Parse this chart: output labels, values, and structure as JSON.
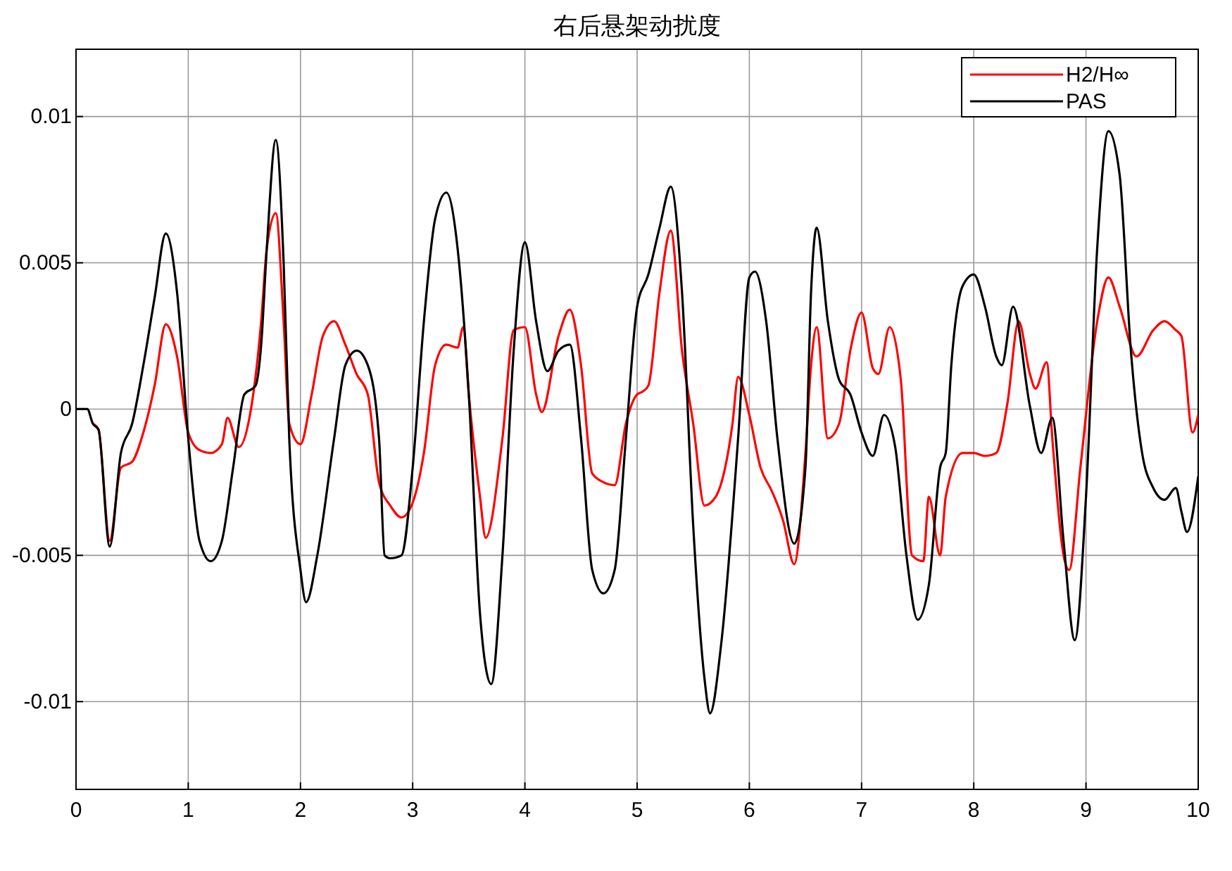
{
  "chart_data": {
    "type": "line",
    "title": "右后悬架动扰度",
    "xlim": [
      0,
      10
    ],
    "ylim": [
      -0.013,
      0.0123
    ],
    "xticks": [
      0,
      1,
      2,
      3,
      4,
      5,
      6,
      7,
      8,
      9,
      10
    ],
    "yticks": [
      -0.01,
      -0.005,
      0,
      0.005,
      0.01
    ],
    "grid": true,
    "legend": "top right",
    "line_style": "solid",
    "marker": "none",
    "series": [
      {
        "name": "H2/H∞",
        "color": "#ff0000",
        "x": [
          0.15,
          0.2,
          0.3,
          0.4,
          0.5,
          0.6,
          0.7,
          0.8,
          0.9,
          1.0,
          1.1,
          1.2,
          1.3,
          1.35,
          1.45,
          1.55,
          1.65,
          1.7,
          1.78,
          1.85,
          1.9,
          2.0,
          2.1,
          2.2,
          2.3,
          2.4,
          2.5,
          2.6,
          2.7,
          2.8,
          2.9,
          3.0,
          3.1,
          3.2,
          3.3,
          3.4,
          3.45,
          3.5,
          3.6,
          3.65,
          3.8,
          3.9,
          4.0,
          4.1,
          4.15,
          4.3,
          4.4,
          4.5,
          4.6,
          4.7,
          4.8,
          4.9,
          5.0,
          5.05,
          5.1,
          5.2,
          5.3,
          5.4,
          5.5,
          5.6,
          5.7,
          5.85,
          5.9,
          6.0,
          6.1,
          6.2,
          6.3,
          6.4,
          6.5,
          6.55,
          6.6,
          6.7,
          6.8,
          6.9,
          7.0,
          7.1,
          7.15,
          7.25,
          7.35,
          7.45,
          7.55,
          7.6,
          7.7,
          7.75,
          7.9,
          8.0,
          8.1,
          8.2,
          8.3,
          8.4,
          8.5,
          8.55,
          8.65,
          8.7,
          8.8,
          8.85,
          8.95,
          9.1,
          9.2,
          9.3,
          9.45,
          9.6,
          9.7,
          9.8,
          9.85,
          9.95,
          10
        ],
        "values": [
          -0.0005,
          -0.0007,
          -0.0045,
          -0.002,
          -0.0018,
          -0.0008,
          0.0008,
          0.0029,
          0.0018,
          -0.0008,
          -0.0014,
          -0.0015,
          -0.0012,
          -0.0003,
          -0.0013,
          -0.0002,
          0.003,
          0.0055,
          0.0067,
          0.003,
          -0.0005,
          -0.0012,
          0.0005,
          0.0025,
          0.003,
          0.0022,
          0.0012,
          0.0005,
          -0.0025,
          -0.0033,
          -0.0037,
          -0.0032,
          -0.0015,
          0.0015,
          0.0022,
          0.0021,
          0.0028,
          0.0005,
          -0.003,
          -0.0044,
          -0.001,
          0.0027,
          0.0028,
          0.0005,
          -0.0001,
          0.0025,
          0.0034,
          0.0015,
          -0.0022,
          -0.0025,
          -0.0026,
          -0.0005,
          0.0005,
          0.0006,
          0.0008,
          0.004,
          0.0061,
          0.002,
          -0.0005,
          -0.0033,
          -0.003,
          -0.0005,
          0.0011,
          -0.0002,
          -0.002,
          -0.0028,
          -0.0038,
          -0.0053,
          -0.0015,
          0.0015,
          0.0028,
          -0.001,
          -0.0005,
          0.002,
          0.0033,
          0.0014,
          0.0012,
          0.0028,
          0.001,
          -0.005,
          -0.0052,
          -0.003,
          -0.005,
          -0.003,
          -0.0015,
          -0.0015,
          -0.0016,
          -0.0015,
          0.0002,
          0.003,
          0.0012,
          0.0007,
          0.0016,
          -0.001,
          -0.005,
          -0.0055,
          -0.002,
          0.003,
          0.0045,
          0.0035,
          0.0018,
          0.0027,
          0.003,
          0.0027,
          0.0025,
          -0.0008,
          -0.0002
        ]
      },
      {
        "name": "PAS",
        "color": "#000000",
        "x": [
          0,
          0.1,
          0.15,
          0.2,
          0.3,
          0.4,
          0.5,
          0.6,
          0.7,
          0.8,
          0.9,
          1.0,
          1.1,
          1.2,
          1.3,
          1.4,
          1.5,
          1.6,
          1.65,
          1.7,
          1.78,
          1.85,
          1.9,
          2.0,
          2.05,
          2.15,
          2.3,
          2.4,
          2.5,
          2.6,
          2.7,
          2.75,
          2.8,
          2.9,
          3.0,
          3.1,
          3.2,
          3.3,
          3.4,
          3.5,
          3.6,
          3.7,
          3.8,
          3.9,
          4.0,
          4.1,
          4.2,
          4.3,
          4.4,
          4.5,
          4.6,
          4.7,
          4.8,
          4.9,
          5.0,
          5.1,
          5.2,
          5.3,
          5.4,
          5.5,
          5.6,
          5.65,
          5.75,
          5.9,
          6.0,
          6.05,
          6.15,
          6.25,
          6.4,
          6.5,
          6.55,
          6.6,
          6.7,
          6.8,
          6.9,
          7.0,
          7.1,
          7.2,
          7.3,
          7.4,
          7.5,
          7.6,
          7.7,
          7.75,
          7.8,
          7.9,
          8.0,
          8.1,
          8.2,
          8.25,
          8.35,
          8.5,
          8.6,
          8.7,
          8.8,
          8.9,
          9.0,
          9.1,
          9.2,
          9.3,
          9.4,
          9.5,
          9.6,
          9.7,
          9.8,
          9.85,
          9.9,
          10
        ],
        "values": [
          0,
          0,
          -0.0005,
          -0.0007,
          -0.0047,
          -0.0015,
          -0.0005,
          0.0015,
          0.0038,
          0.006,
          0.004,
          -0.001,
          -0.0045,
          -0.0052,
          -0.0045,
          -0.002,
          0.0005,
          0.0008,
          0.0022,
          0.0055,
          0.0092,
          0.005,
          -0.001,
          -0.0055,
          -0.0066,
          -0.005,
          -0.001,
          0.0015,
          0.002,
          0.0015,
          -0.001,
          -0.005,
          -0.0051,
          -0.005,
          -0.002,
          0.003,
          0.0065,
          0.0074,
          0.0055,
          0.0005,
          -0.007,
          -0.0094,
          -0.005,
          0.002,
          0.0057,
          0.003,
          0.0013,
          0.002,
          0.0022,
          -0.001,
          -0.0055,
          -0.0063,
          -0.0055,
          -0.001,
          0.0035,
          0.0046,
          0.0062,
          0.0076,
          0.004,
          -0.004,
          -0.0092,
          -0.0104,
          -0.008,
          -0.001,
          0.0045,
          0.0047,
          0.003,
          -0.001,
          -0.0046,
          -0.002,
          0.004,
          0.0062,
          0.003,
          0.001,
          0.0005,
          -0.0008,
          -0.0016,
          -0.0002,
          -0.0013,
          -0.005,
          -0.0072,
          -0.006,
          -0.002,
          -0.0015,
          0.0015,
          0.0042,
          0.0046,
          0.0035,
          0.0018,
          0.0015,
          0.0035,
          0.0001,
          -0.0015,
          -0.0003,
          -0.0045,
          -0.0079,
          -0.003,
          0.0055,
          0.0095,
          0.008,
          0.002,
          -0.0015,
          -0.0027,
          -0.0031,
          -0.0027,
          -0.0035,
          -0.0042,
          -0.0023
        ]
      }
    ]
  }
}
